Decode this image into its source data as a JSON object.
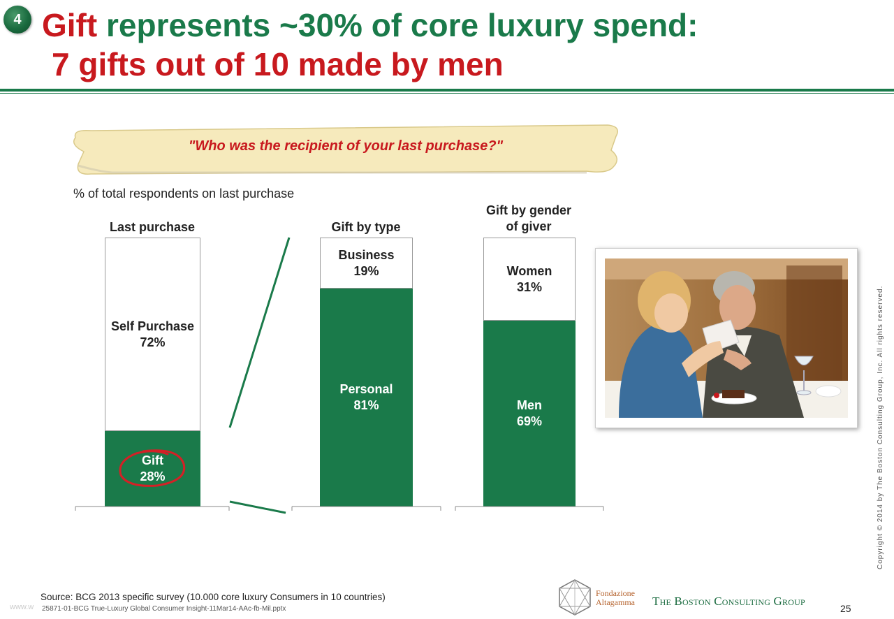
{
  "badge": {
    "number": "4"
  },
  "title": {
    "line1_red": "Gift",
    "line1_green": " represents ~30% of core luxury spend:",
    "line2": "7 gifts out of 10 made by men"
  },
  "question": "\"Who was the recipient of your last purchase?\"",
  "subtitle": "% of total respondents on last purchase",
  "chart_data": {
    "type": "bar",
    "stacked": true,
    "unit": "%",
    "ylim": [
      0,
      100
    ],
    "bars": [
      {
        "header": "Last purchase",
        "segments": [
          {
            "label": "Gift",
            "value_text": "28%",
            "value": 28,
            "color": "#1a7a4a"
          },
          {
            "label": "Self Purchase",
            "value_text": "72%",
            "value": 72,
            "color": "#ffffff"
          }
        ]
      },
      {
        "header": "Gift by type",
        "segments": [
          {
            "label": "Personal",
            "value_text": "81%",
            "value": 81,
            "color": "#1a7a4a"
          },
          {
            "label": "Business",
            "value_text": "19%",
            "value": 19,
            "color": "#ffffff"
          }
        ]
      },
      {
        "header": "Gift by gender of giver",
        "header_line1": "Gift by gender",
        "header_line2": "of giver",
        "segments": [
          {
            "label": "Men",
            "value_text": "69%",
            "value": 69,
            "color": "#1a7a4a"
          },
          {
            "label": "Women",
            "value_text": "31%",
            "value": 31,
            "color": "#ffffff"
          }
        ]
      }
    ],
    "highlight": "Gift"
  },
  "photo": {
    "icon": "couple-gift-photo"
  },
  "footer": {
    "source": "Source: BCG 2013 specific survey (10.000 core luxury Consumers in 10 countries)",
    "file_ref": "25871-01-BCG True-Luxury Global Consumer Insight-11Mar14-AAc-fb-Mil.pptx",
    "watermark": "www.w",
    "copyright": "Copyright © 2014 by The Boston Consulting Group, Inc. All rights reserved.",
    "fa_logo_line1": "Fondazione",
    "fa_logo_line2": "Altagamma",
    "bcg_logo": "The Boston Consulting Group",
    "page_number": "25"
  },
  "colors": {
    "brand_green": "#1a7a4a",
    "accent_red": "#c8191e"
  }
}
